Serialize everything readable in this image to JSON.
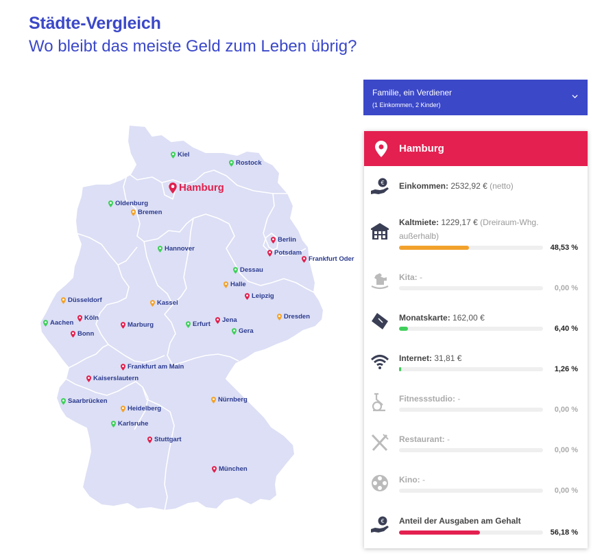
{
  "header": {
    "title": "Städte-Vergleich",
    "subtitle": "Wo bleibt das meiste Geld zum Leben übrig?"
  },
  "colors": {
    "brand_blue": "#3b48c8",
    "accent_red": "#e32050",
    "pin_red": "#e0204d",
    "pin_orange": "#f2a22c",
    "pin_green": "#3fcf5a",
    "map_fill": "#dcdff5"
  },
  "selector": {
    "line1": "Familie, ein Verdiener",
    "line2": "(1 Einkommen, 2 Kinder)",
    "icon": "chevron-down-icon"
  },
  "map": {
    "active_city": "Hamburg",
    "cities": [
      {
        "name": "Kiel",
        "color": "green"
      },
      {
        "name": "Rostock",
        "color": "green"
      },
      {
        "name": "Hamburg",
        "color": "red"
      },
      {
        "name": "Oldenburg",
        "color": "green"
      },
      {
        "name": "Bremen",
        "color": "orange"
      },
      {
        "name": "Berlin",
        "color": "red"
      },
      {
        "name": "Potsdam",
        "color": "red"
      },
      {
        "name": "Frankfurt Oder",
        "color": "red"
      },
      {
        "name": "Hannover",
        "color": "green"
      },
      {
        "name": "Dessau",
        "color": "green"
      },
      {
        "name": "Halle",
        "color": "orange"
      },
      {
        "name": "Leipzig",
        "color": "red"
      },
      {
        "name": "Düsseldorf",
        "color": "orange"
      },
      {
        "name": "Kassel",
        "color": "orange"
      },
      {
        "name": "Dresden",
        "color": "orange"
      },
      {
        "name": "Aachen",
        "color": "green"
      },
      {
        "name": "Köln",
        "color": "red"
      },
      {
        "name": "Bonn",
        "color": "red"
      },
      {
        "name": "Marburg",
        "color": "red"
      },
      {
        "name": "Erfurt",
        "color": "green"
      },
      {
        "name": "Jena",
        "color": "red"
      },
      {
        "name": "Gera",
        "color": "green"
      },
      {
        "name": "Frankfurt am Main",
        "color": "red"
      },
      {
        "name": "Kaiserslautern",
        "color": "red"
      },
      {
        "name": "Saarbrücken",
        "color": "green"
      },
      {
        "name": "Nürnberg",
        "color": "orange"
      },
      {
        "name": "Heidelberg",
        "color": "orange"
      },
      {
        "name": "Karlsruhe",
        "color": "green"
      },
      {
        "name": "Stuttgart",
        "color": "red"
      },
      {
        "name": "München",
        "color": "red"
      }
    ]
  },
  "panel": {
    "city": "Hamburg",
    "icon": "map-pin-icon",
    "rows": [
      {
        "key": "einkommen",
        "icon": "money-hand-icon",
        "label": "Einkommen:",
        "value": "2532,92 €",
        "note": "(netto)",
        "percent": null,
        "bar_fraction": null,
        "bar_color": null,
        "enabled": true
      },
      {
        "key": "kaltmiete",
        "icon": "building-icon",
        "label": "Kaltmiete:",
        "value": "1229,17 €",
        "note": "(Dreiraum-Whg.",
        "note2": "außerhalb)",
        "percent": "48,53 %",
        "bar_fraction": 0.4853,
        "bar_color": "#f2a22c",
        "enabled": true
      },
      {
        "key": "kita",
        "icon": "rocking-horse-icon",
        "label": "Kita:",
        "value": "-",
        "note": "",
        "percent": "0,00 %",
        "bar_fraction": 0,
        "bar_color": "#cccccc",
        "enabled": false
      },
      {
        "key": "monatskarte",
        "icon": "ticket-icon",
        "label": "Monatskarte:",
        "value": "162,00 €",
        "note": "",
        "percent": "6,40 %",
        "bar_fraction": 0.064,
        "bar_color": "#3fcf5a",
        "enabled": true
      },
      {
        "key": "internet",
        "icon": "wifi-icon",
        "label": "Internet:",
        "value": "31,81 €",
        "note": "",
        "percent": "1,26 %",
        "bar_fraction": 0.0126,
        "bar_color": "#3fcf5a",
        "enabled": true
      },
      {
        "key": "fitness",
        "icon": "exercise-bike-icon",
        "label": "Fitnessstudio:",
        "value": "-",
        "note": "",
        "percent": "0,00 %",
        "bar_fraction": 0,
        "bar_color": "#cccccc",
        "enabled": false
      },
      {
        "key": "restaurant",
        "icon": "fork-knife-icon",
        "label": "Restaurant:",
        "value": "-",
        "note": "",
        "percent": "0,00 %",
        "bar_fraction": 0,
        "bar_color": "#cccccc",
        "enabled": false
      },
      {
        "key": "kino",
        "icon": "film-reel-icon",
        "label": "Kino:",
        "value": "-",
        "note": "",
        "percent": "0,00 %",
        "bar_fraction": 0,
        "bar_color": "#cccccc",
        "enabled": false
      },
      {
        "key": "anteil",
        "icon": "money-hand-icon",
        "label": "Anteil der Ausgaben am Gehalt",
        "value": "",
        "note": "",
        "percent": "56,18 %",
        "bar_fraction": 0.5618,
        "bar_color": "#e32050",
        "enabled": true
      }
    ]
  }
}
